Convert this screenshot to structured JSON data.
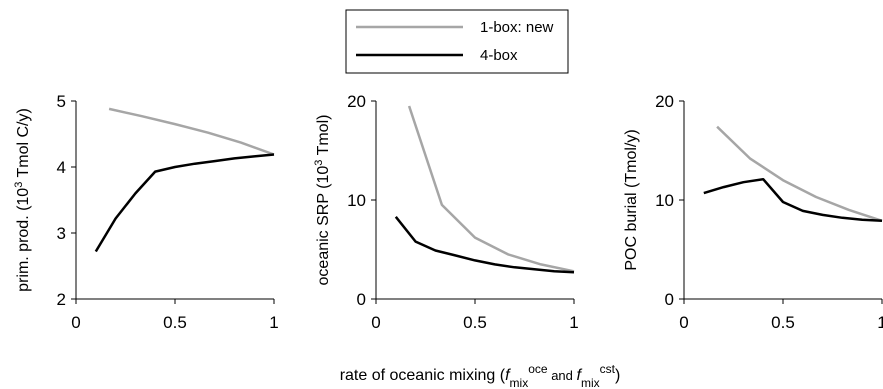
{
  "legend": {
    "items": [
      {
        "label": "1-box: new",
        "color": "#a6a6a6"
      },
      {
        "label": "4-box",
        "color": "#000000"
      }
    ]
  },
  "xlabel": {
    "prefix": "rate of oceanic mixing (",
    "f1": "f",
    "sub1": "mix",
    "sup1": "oce",
    "and": " and ",
    "f2": "f",
    "sub2": "mix",
    "sup2": "cst",
    "suffix": ")"
  },
  "chart_data": [
    {
      "type": "line",
      "ylabel": {
        "main": "prim. prod. (10",
        "sup": "3",
        "tail": " Tmol C/y)"
      },
      "xlim": [
        0,
        1
      ],
      "ylim": [
        2,
        5
      ],
      "xticks": [
        "0",
        "0.5",
        "1"
      ],
      "xtick_values": [
        0,
        0.5,
        1
      ],
      "yticks": [
        "2",
        "3",
        "4",
        "5"
      ],
      "ytick_values": [
        2,
        3,
        4,
        5
      ],
      "series": [
        {
          "name": "1-box: new",
          "color": "#a6a6a6",
          "x": [
            0.167,
            0.333,
            0.5,
            0.667,
            0.833,
            1.0
          ],
          "y": [
            4.88,
            4.77,
            4.65,
            4.52,
            4.37,
            4.19
          ]
        },
        {
          "name": "4-box",
          "color": "#000000",
          "x": [
            0.1,
            0.2,
            0.3,
            0.4,
            0.5,
            0.6,
            0.7,
            0.8,
            0.9,
            1.0
          ],
          "y": [
            2.72,
            3.22,
            3.6,
            3.93,
            4.0,
            4.05,
            4.09,
            4.13,
            4.16,
            4.19
          ]
        }
      ]
    },
    {
      "type": "line",
      "ylabel": {
        "main": "oceanic SRP (10",
        "sup": "3",
        "tail": " Tmol)"
      },
      "xlim": [
        0,
        1
      ],
      "ylim": [
        0,
        20
      ],
      "xticks": [
        "0",
        "0.5",
        "1"
      ],
      "xtick_values": [
        0,
        0.5,
        1
      ],
      "yticks": [
        "0",
        "10",
        "20"
      ],
      "ytick_values": [
        0,
        10,
        20
      ],
      "series": [
        {
          "name": "1-box: new",
          "color": "#a6a6a6",
          "x": [
            0.167,
            0.333,
            0.5,
            0.667,
            0.833,
            1.0
          ],
          "y": [
            19.5,
            9.5,
            6.2,
            4.5,
            3.5,
            2.8
          ]
        },
        {
          "name": "4-box",
          "color": "#000000",
          "x": [
            0.1,
            0.2,
            0.3,
            0.4,
            0.5,
            0.6,
            0.7,
            0.8,
            0.9,
            1.0
          ],
          "y": [
            8.3,
            5.8,
            4.9,
            4.4,
            3.9,
            3.5,
            3.2,
            3.0,
            2.8,
            2.7
          ]
        }
      ]
    },
    {
      "type": "line",
      "ylabel": {
        "main": "POC burial (Tmol/y)",
        "sup": "",
        "tail": ""
      },
      "xlim": [
        0,
        1
      ],
      "ylim": [
        0,
        20
      ],
      "xticks": [
        "0",
        "0.5",
        "1"
      ],
      "xtick_values": [
        0,
        0.5,
        1
      ],
      "yticks": [
        "0",
        "10",
        "20"
      ],
      "ytick_values": [
        0,
        10,
        20
      ],
      "series": [
        {
          "name": "1-box: new",
          "color": "#a6a6a6",
          "x": [
            0.167,
            0.333,
            0.5,
            0.667,
            0.833,
            1.0
          ],
          "y": [
            17.4,
            14.2,
            12.0,
            10.3,
            9.0,
            7.9
          ]
        },
        {
          "name": "4-box",
          "color": "#000000",
          "x": [
            0.1,
            0.2,
            0.3,
            0.4,
            0.5,
            0.6,
            0.7,
            0.8,
            0.9,
            1.0
          ],
          "y": [
            10.7,
            11.3,
            11.8,
            12.1,
            9.8,
            8.9,
            8.5,
            8.2,
            8.0,
            7.9
          ]
        }
      ]
    }
  ]
}
